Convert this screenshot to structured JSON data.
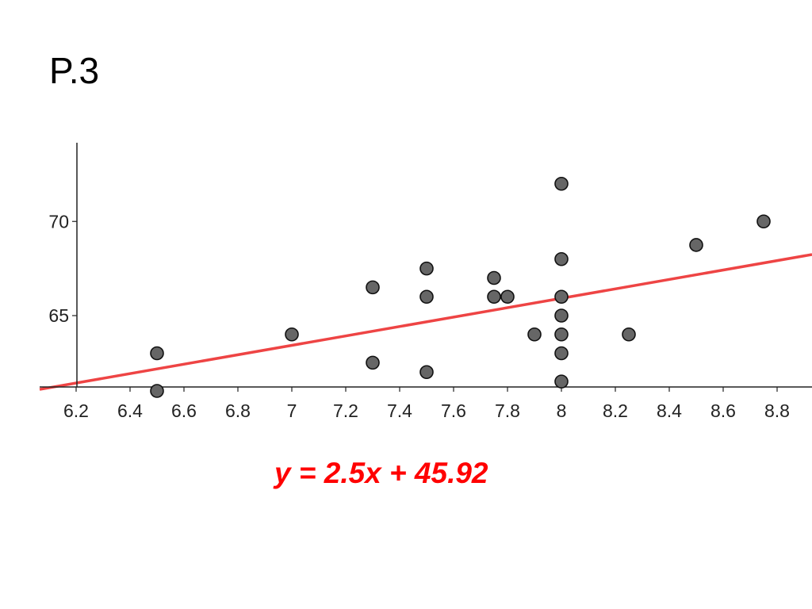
{
  "slide": {
    "title": "P.3"
  },
  "chart_data": {
    "type": "scatter",
    "title": "",
    "xlabel": "",
    "ylabel": "",
    "xlim": [
      6.2,
      8.9
    ],
    "ylim": [
      61.0,
      74.0
    ],
    "x_ticks": [
      "6.2",
      "6.4",
      "6.6",
      "6.8",
      "7",
      "7.2",
      "7.4",
      "7.6",
      "7.8",
      "8",
      "8.2",
      "8.4",
      "8.6",
      "8.8"
    ],
    "x_tick_values": [
      6.2,
      6.4,
      6.6,
      6.8,
      7.0,
      7.2,
      7.4,
      7.6,
      7.8,
      8.0,
      8.2,
      8.4,
      8.6,
      8.8
    ],
    "y_ticks": [
      "65",
      "70"
    ],
    "y_tick_values": [
      65,
      70
    ],
    "grid": false,
    "points": [
      {
        "x": 6.5,
        "y": 63.0
      },
      {
        "x": 6.5,
        "y": 61.0
      },
      {
        "x": 7.0,
        "y": 64.0
      },
      {
        "x": 7.3,
        "y": 66.5
      },
      {
        "x": 7.3,
        "y": 62.5
      },
      {
        "x": 7.5,
        "y": 67.5
      },
      {
        "x": 7.5,
        "y": 66.0
      },
      {
        "x": 7.5,
        "y": 62.0
      },
      {
        "x": 7.75,
        "y": 67.0
      },
      {
        "x": 7.75,
        "y": 66.0
      },
      {
        "x": 7.8,
        "y": 66.0
      },
      {
        "x": 7.9,
        "y": 64.0
      },
      {
        "x": 8.0,
        "y": 72.0
      },
      {
        "x": 8.0,
        "y": 68.0
      },
      {
        "x": 8.0,
        "y": 66.0
      },
      {
        "x": 8.0,
        "y": 65.0
      },
      {
        "x": 8.0,
        "y": 64.0
      },
      {
        "x": 8.0,
        "y": 63.0
      },
      {
        "x": 8.0,
        "y": 61.5
      },
      {
        "x": 8.25,
        "y": 64.0
      },
      {
        "x": 8.5,
        "y": 68.75
      },
      {
        "x": 8.75,
        "y": 70.0
      }
    ],
    "regression": {
      "slope": 2.5,
      "intercept": 45.92,
      "equation": "y = 2.5x + 45.92",
      "color": "#ee4444"
    },
    "point_color": "#666666",
    "point_stroke": "#111111"
  }
}
